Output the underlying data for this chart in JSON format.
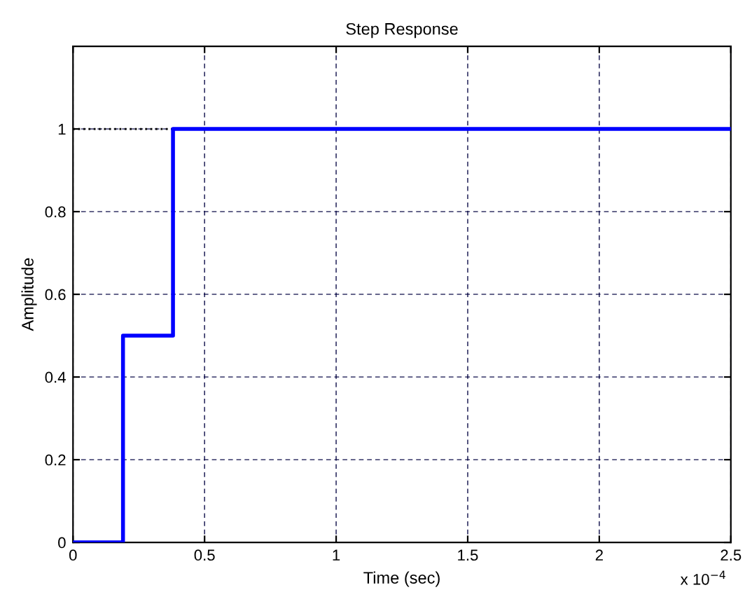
{
  "chart_data": {
    "type": "step",
    "title": "Step Response",
    "xlabel": "Time (sec)",
    "ylabel": "Amplitude",
    "series": [
      {
        "color": "#0000ff",
        "x": [
          0,
          0.19,
          0.38,
          2.5
        ],
        "values": [
          0,
          0.5,
          1,
          1
        ]
      }
    ],
    "xlim": [
      0,
      2.5
    ],
    "xticks": [
      0,
      0.5,
      1,
      1.5,
      2,
      2.5
    ],
    "ylim": [
      0,
      1.2
    ],
    "yticks": [
      0,
      0.2,
      0.4,
      0.6,
      0.8,
      1
    ],
    "ref_lines": [
      {
        "axis": "y",
        "value": 1,
        "color": "#000000",
        "line_style": "dotted"
      }
    ],
    "annotations": [
      "x 10$^{−4}$"
    ],
    "grid": true,
    "line_style": "solid",
    "marker": "none"
  }
}
